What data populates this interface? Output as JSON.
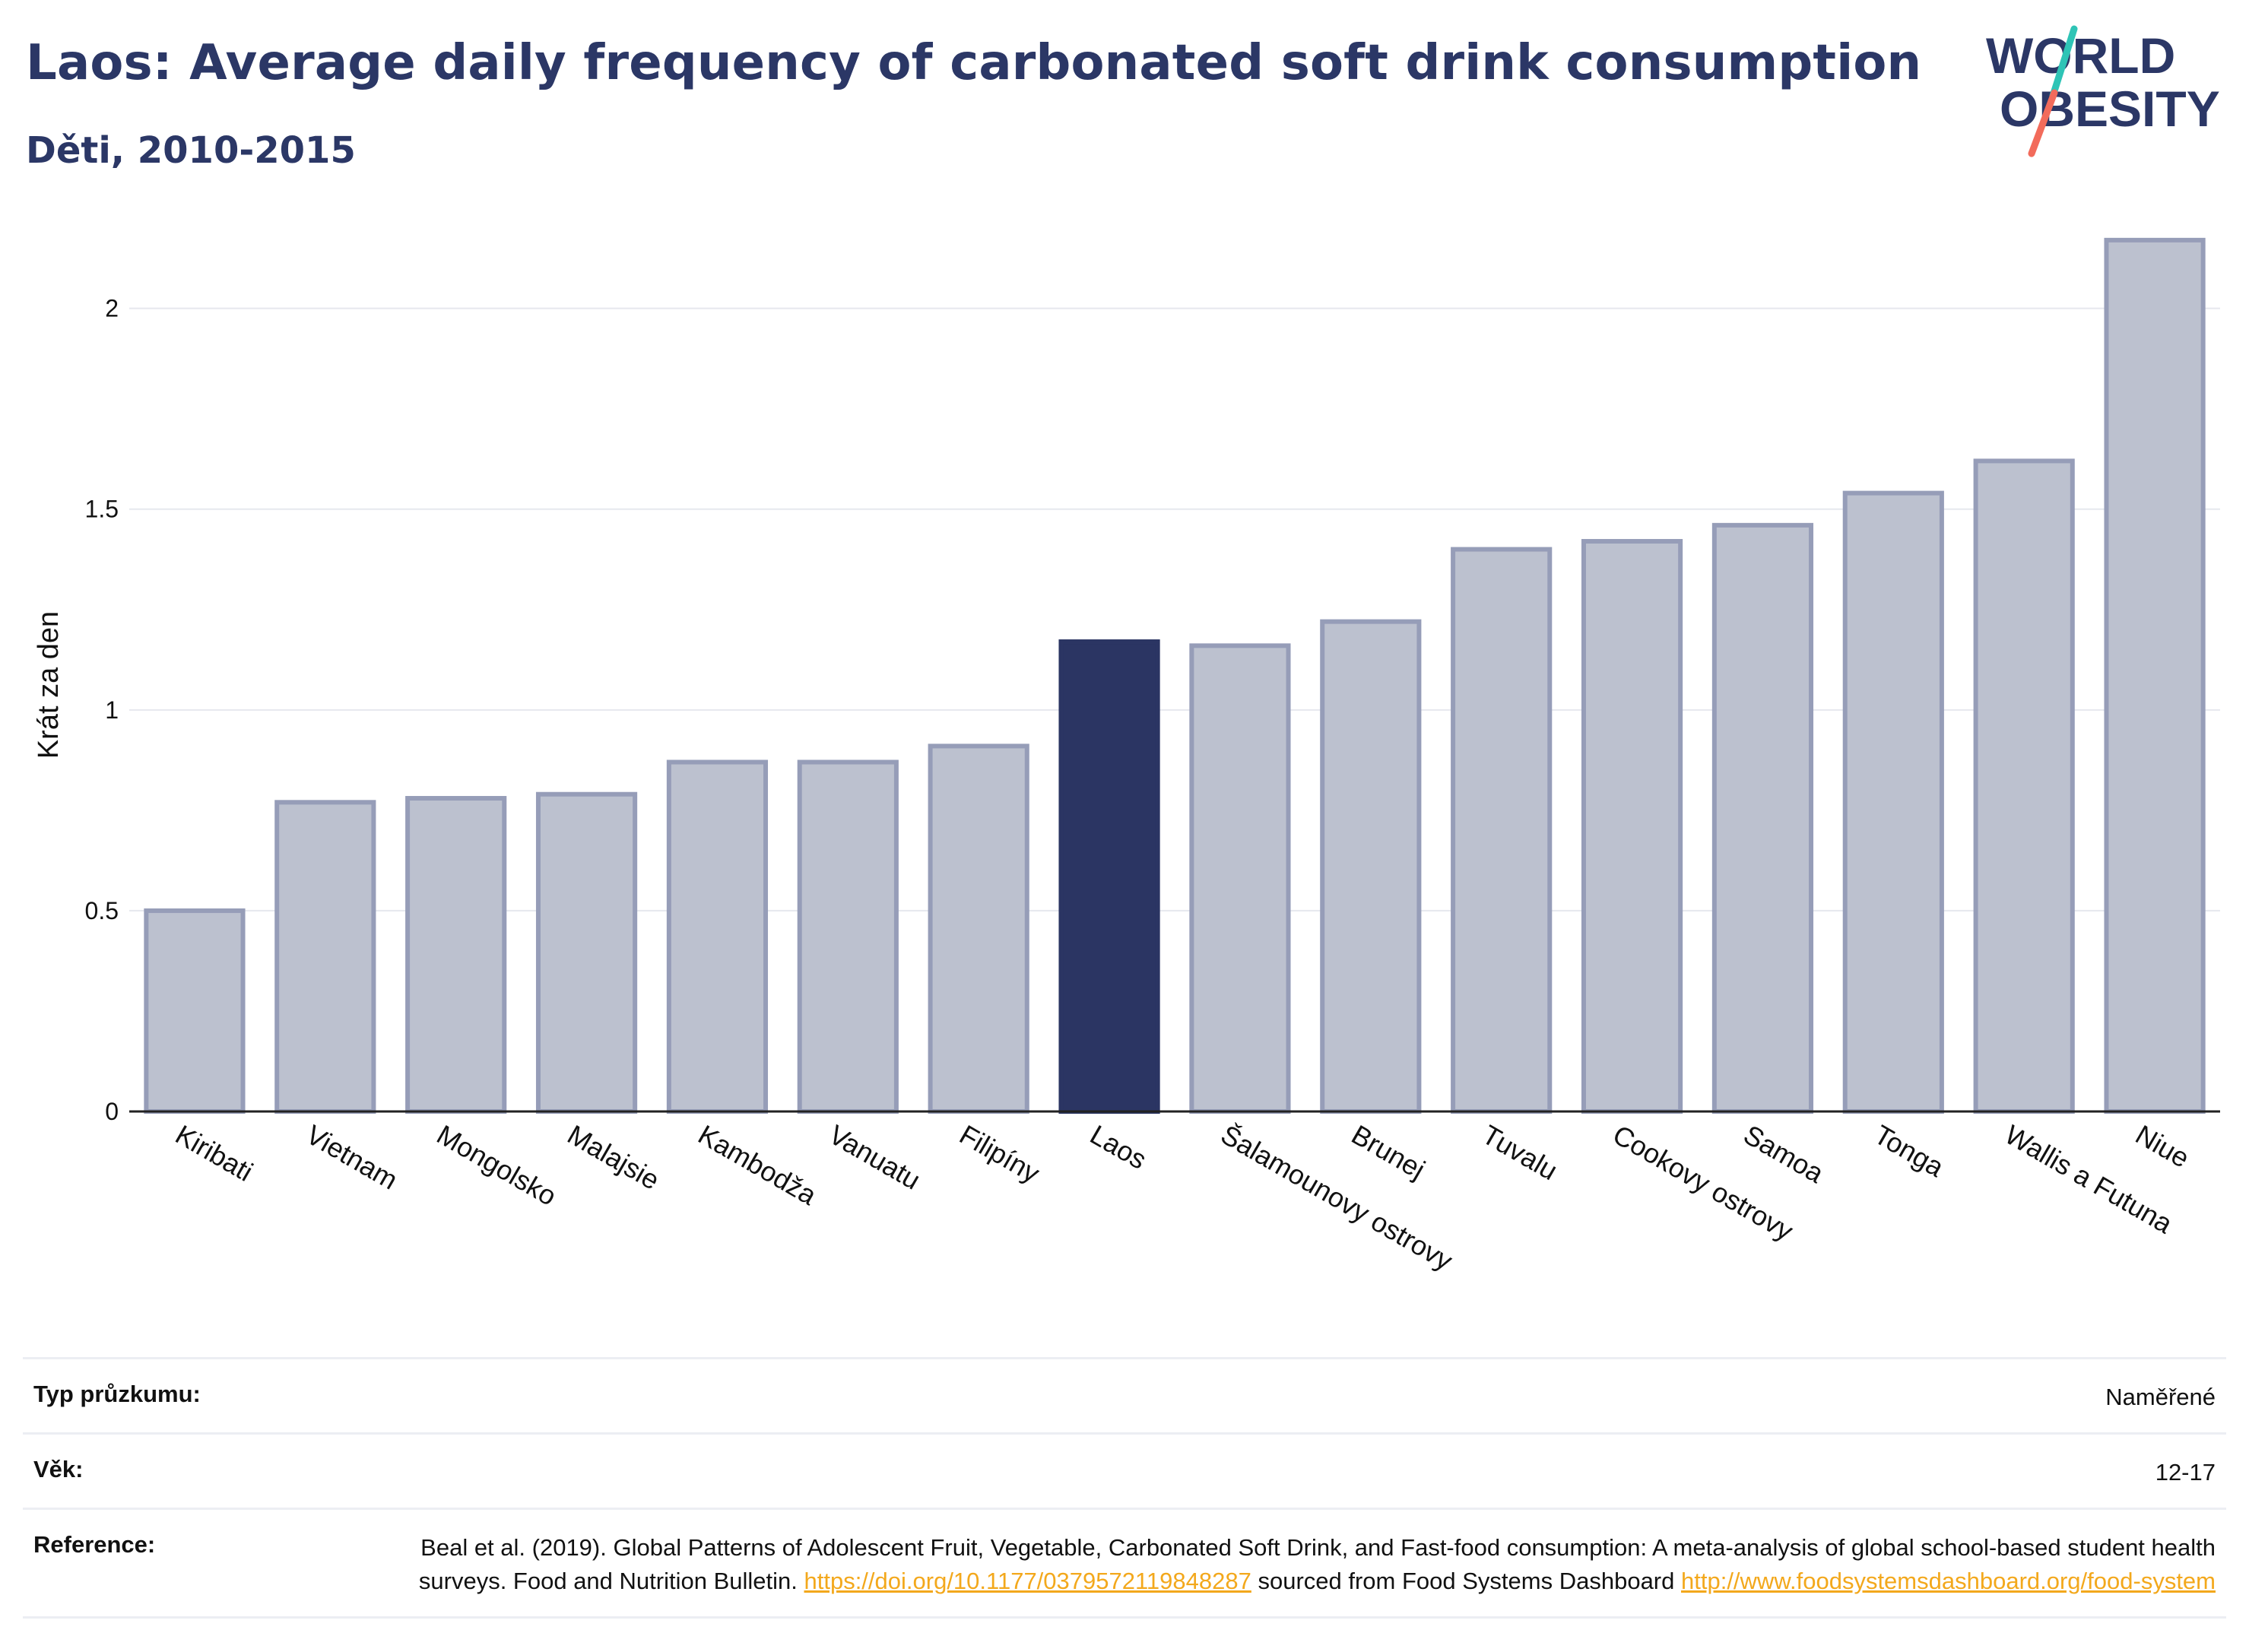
{
  "header": {
    "title": "Laos: Average daily frequency of carbonated soft drink consumption",
    "subtitle": "Děti, 2010-2015"
  },
  "logo": {
    "line1": "WORLD",
    "line2": "OBESITY",
    "slash_colors": [
      "#2ec4b6",
      "#f26b5b"
    ]
  },
  "chart_data": {
    "type": "bar",
    "ylabel": "Krát za den",
    "xlabel": "",
    "ylim": [
      0,
      2.2
    ],
    "yticks": [
      0,
      0.5,
      1,
      1.5,
      2
    ],
    "ytick_labels": [
      "0",
      "0.5",
      "1",
      "1.5",
      "2"
    ],
    "grid": true,
    "highlight": "Laos",
    "colors": {
      "bar": "#bcc1cf",
      "bar_border": "#969db8",
      "highlight": "#2b3563"
    },
    "categories": [
      "Kiribati",
      "Vietnam",
      "Mongolsko",
      "Malajsie",
      "Kambodža",
      "Vanuatu",
      "Filipíny",
      "Laos",
      "Šalamounovy ostrovy",
      "Brunej",
      "Tuvalu",
      "Cookovy ostrovy",
      "Samoa",
      "Tonga",
      "Wallis a Futuna",
      "Niue"
    ],
    "values": [
      0.5,
      0.77,
      0.78,
      0.79,
      0.87,
      0.87,
      0.91,
      1.17,
      1.16,
      1.22,
      1.4,
      1.42,
      1.46,
      1.54,
      1.62,
      2.17
    ]
  },
  "info": {
    "survey_type": {
      "label": "Typ průzkumu:",
      "value": "Naměřené"
    },
    "age": {
      "label": "Věk:",
      "value": "12-17"
    },
    "reference": {
      "label": "Reference:",
      "text_1": "Beal et al. (2019). Global Patterns of Adolescent Fruit, Vegetable, Carbonated Soft Drink, and Fast-food consumption: A meta-analysis of global school-based student health surveys. Food and Nutrition Bulletin. ",
      "link_1": "https://doi.org/10.1177/0379572119848287",
      "text_2": " sourced from Food Systems Dashboard ",
      "link_2": "http://www.foodsystemsdashboard.org/food-system"
    }
  }
}
